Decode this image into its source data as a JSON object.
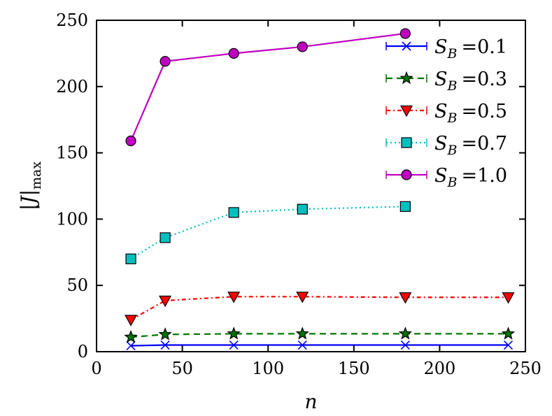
{
  "chart_data": {
    "type": "line",
    "title": "",
    "xlabel": "n",
    "ylabel": "|J|max",
    "ylabel_main": "|J|",
    "ylabel_sub": "max",
    "xlim": [
      0,
      250
    ],
    "ylim": [
      0,
      250
    ],
    "xticks": [
      0,
      50,
      100,
      150,
      200,
      250
    ],
    "yticks": [
      0,
      50,
      100,
      150,
      200,
      250
    ],
    "grid": false,
    "legend_position": "top-right",
    "series": [
      {
        "name": "S_B =0.1",
        "sym": "S",
        "sub": "B",
        "value_text": "=0.1",
        "color": "#0000ff",
        "marker": "x",
        "dash": "",
        "x": [
          20,
          40,
          80,
          120,
          180,
          240
        ],
        "y": [
          4.5,
          5,
          5,
          5,
          5,
          5
        ]
      },
      {
        "name": "S_B =0.3",
        "sym": "S",
        "sub": "B",
        "value_text": "=0.3",
        "color": "#007700",
        "marker": "star",
        "dash": "9,6",
        "x": [
          20,
          40,
          80,
          120,
          180,
          240
        ],
        "y": [
          11,
          13,
          13.5,
          13.5,
          13.5,
          13.5
        ]
      },
      {
        "name": "S_B =0.5",
        "sym": "S",
        "sub": "B",
        "value_text": "=0.5",
        "color": "#ff0000",
        "marker": "triangle-down",
        "dash": "6,4,2,4",
        "x": [
          20,
          40,
          80,
          120,
          180,
          240
        ],
        "y": [
          24,
          38.5,
          41.5,
          41.5,
          41,
          41
        ]
      },
      {
        "name": "S_B =0.7",
        "sym": "S",
        "sub": "B",
        "value_text": "=0.7",
        "color": "#00c0c0",
        "marker": "square",
        "dash": "2,4",
        "x": [
          20,
          40,
          80,
          120,
          180
        ],
        "y": [
          70,
          86,
          105,
          107.5,
          109.5
        ]
      },
      {
        "name": "S_B =1.0",
        "sym": "S",
        "sub": "B",
        "value_text": "=1.0",
        "color": "#c000c0",
        "marker": "circle",
        "dash": "",
        "x": [
          20,
          40,
          80,
          120,
          180
        ],
        "y": [
          159,
          219,
          225,
          230,
          240
        ]
      }
    ]
  }
}
